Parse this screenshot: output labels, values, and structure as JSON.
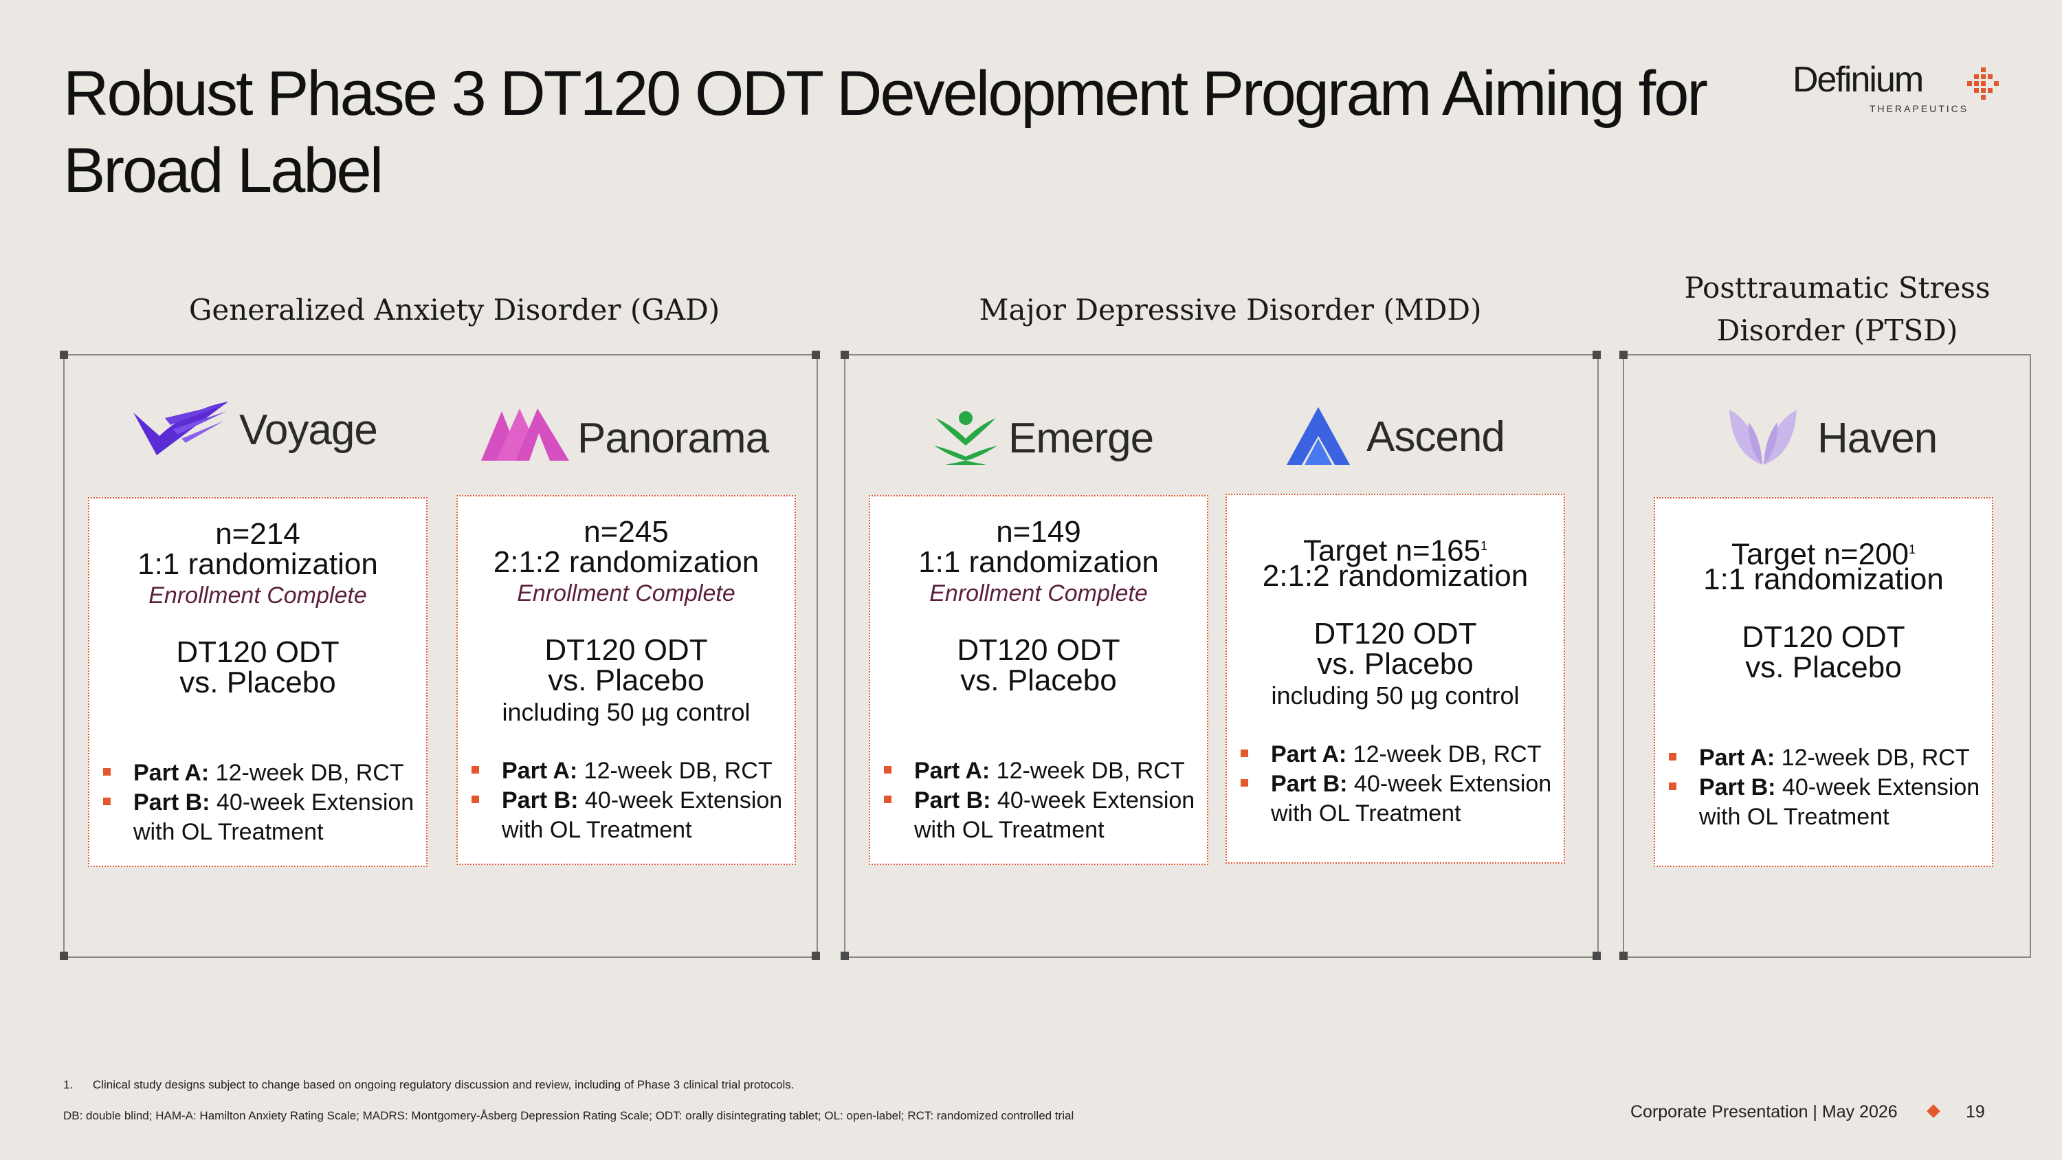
{
  "title": "Robust Phase 3 DT120 ODT Development Program Aiming for Broad Label",
  "logo": {
    "name": "Definium",
    "subtitle": "THERAPEUTICS"
  },
  "diseases": {
    "gad": "Generalized Anxiety Disorder (GAD)",
    "mdd": "Major Depressive Disorder (MDD)",
    "ptsd_line1": "Posttraumatic Stress",
    "ptsd_line2": "Disorder (PTSD)"
  },
  "studies": [
    {
      "name": "Voyage",
      "n": "n=214",
      "randomization": "1:1 randomization",
      "status": "Enrollment Complete",
      "drug": "DT120 ODT",
      "comparator": "vs. Placebo",
      "control": "",
      "partA_label": "Part A:",
      "partA": "12-week DB, RCT",
      "partB_label": "Part B:",
      "partB": "40-week Extension",
      "partB2": "with OL Treatment"
    },
    {
      "name": "Panorama",
      "n": "n=245",
      "randomization": "2:1:2 randomization",
      "status": "Enrollment Complete",
      "drug": "DT120 ODT",
      "comparator": "vs. Placebo",
      "control": "including 50 µg control",
      "partA_label": "Part A:",
      "partA": "12-week DB, RCT",
      "partB_label": "Part B:",
      "partB": "40-week Extension",
      "partB2": "with OL Treatment"
    },
    {
      "name": "Emerge",
      "n": "n=149",
      "randomization": "1:1 randomization",
      "status": "Enrollment Complete",
      "drug": "DT120 ODT",
      "comparator": "vs. Placebo",
      "control": "",
      "partA_label": "Part A:",
      "partA": "12-week DB, RCT",
      "partB_label": "Part B:",
      "partB": "40-week Extension",
      "partB2": "with OL Treatment"
    },
    {
      "name": "Ascend",
      "n": "Target n=165",
      "sup": "1",
      "randomization": "2:1:2 randomization",
      "status": "",
      "drug": "DT120 ODT",
      "comparator": "vs. Placebo",
      "control": "including 50 µg control",
      "partA_label": "Part A:",
      "partA": "12-week DB, RCT",
      "partB_label": "Part B:",
      "partB": "40-week Extension",
      "partB2": "with OL Treatment"
    },
    {
      "name": "Haven",
      "n": "Target n=200",
      "sup": "1",
      "randomization": "1:1 randomization",
      "status": "",
      "drug": "DT120 ODT",
      "comparator": "vs. Placebo",
      "control": "",
      "partA_label": "Part A:",
      "partA": "12-week DB, RCT",
      "partB_label": "Part B:",
      "partB": "40-week Extension",
      "partB2": "with OL Treatment"
    }
  ],
  "footnotes": {
    "note1_num": "1.",
    "note1": "Clinical study designs subject to change based on ongoing regulatory discussion and review, including of Phase 3 clinical trial protocols.",
    "abbrev": "DB: double blind; HAM-A: Hamilton Anxiety Rating Scale; MADRS: Montgomery-Åsberg Depression Rating Scale; ODT: orally disintegrating tablet; OL: open-label; RCT: randomized controlled trial"
  },
  "footer": {
    "presentation": "Corporate Presentation | May 2026",
    "page": "19"
  },
  "colors": {
    "accent": "#e2572d",
    "voyage": "#5b2bd6",
    "panorama": "#d64fc0",
    "emerge": "#27a844",
    "ascend": "#3b62e0",
    "haven": "#c9b6ea",
    "background": "#ebe8e3"
  }
}
